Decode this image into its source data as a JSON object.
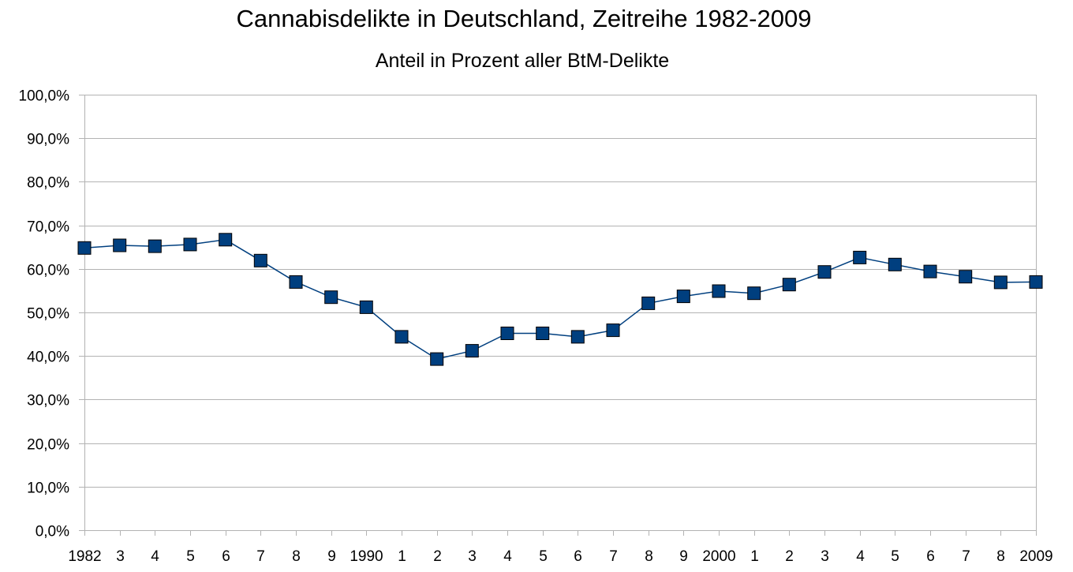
{
  "chart_data": {
    "type": "line",
    "title": "Cannabisdelikte in Deutschland, Zeitreihe 1982-2009",
    "subtitle": "Anteil in Prozent aller BtM-Delikte",
    "xlabel": "",
    "ylabel": "",
    "categories": [
      "1982",
      "3",
      "4",
      "5",
      "6",
      "7",
      "8",
      "9",
      "1990",
      "1",
      "2",
      "3",
      "4",
      "5",
      "6",
      "7",
      "8",
      "9",
      "2000",
      "1",
      "2",
      "3",
      "4",
      "5",
      "6",
      "7",
      "8",
      "2009"
    ],
    "series": [
      {
        "values": [
          64.8,
          65.4,
          65.2,
          65.6,
          66.7,
          61.9,
          57.0,
          53.5,
          51.2,
          44.4,
          39.3,
          41.2,
          45.2,
          45.2,
          44.4,
          45.9,
          52.1,
          53.7,
          54.9,
          54.4,
          56.4,
          59.3,
          62.6,
          61.0,
          59.4,
          58.2,
          56.9,
          57.0
        ],
        "color": "#003f7f",
        "marker": "square"
      }
    ],
    "ylim": [
      0,
      100
    ],
    "yticks": [
      0,
      10,
      20,
      30,
      40,
      50,
      60,
      70,
      80,
      90,
      100
    ],
    "ytick_labels": [
      "0,0%",
      "10,0%",
      "20,0%",
      "30,0%",
      "40,0%",
      "50,0%",
      "60,0%",
      "70,0%",
      "80,0%",
      "90,0%",
      "100,0%"
    ],
    "grid": true,
    "legend": "none",
    "colors": {
      "line": "#003f7f",
      "marker_fill": "#003f7f",
      "marker_stroke": "#000000",
      "grid": "#b3b3b3"
    }
  }
}
